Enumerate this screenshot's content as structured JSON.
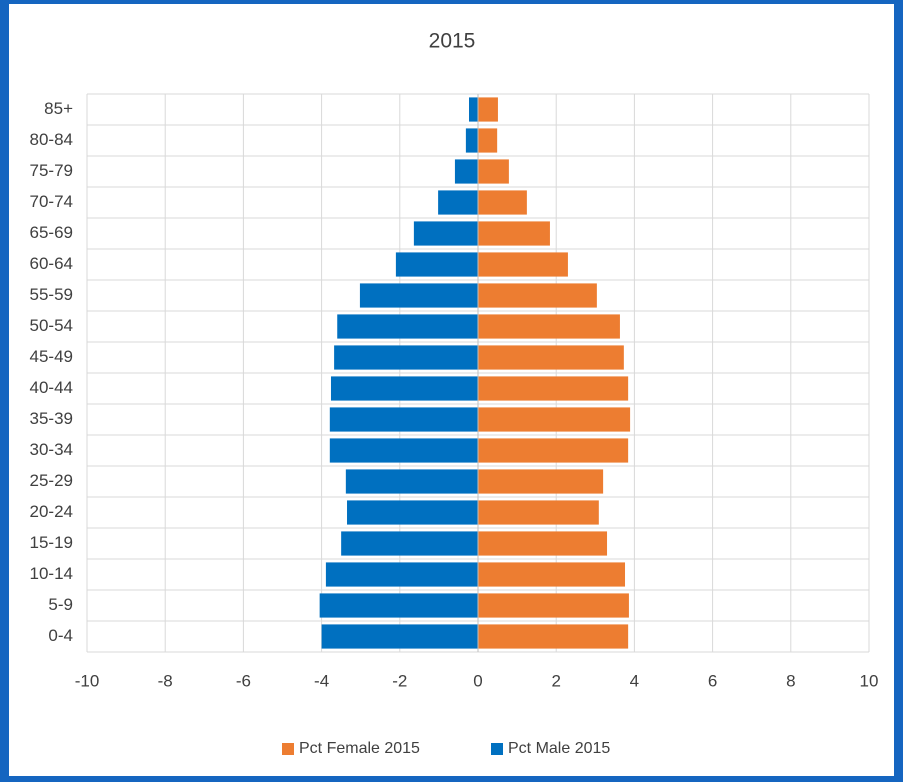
{
  "chart_data": {
    "type": "bar",
    "orientation": "horizontal",
    "title": "2015",
    "categories": [
      "0-4",
      "5-9",
      "10-14",
      "15-19",
      "20-24",
      "25-29",
      "30-34",
      "35-39",
      "40-44",
      "45-49",
      "50-54",
      "55-59",
      "60-64",
      "65-69",
      "70-74",
      "75-79",
      "80-84",
      "85+"
    ],
    "series": [
      {
        "name": "Pct Female 2015",
        "color": "#ed7d31",
        "values": [
          3.84,
          3.86,
          3.76,
          3.3,
          3.09,
          3.2,
          3.84,
          3.89,
          3.84,
          3.73,
          3.63,
          3.04,
          2.3,
          1.84,
          1.25,
          0.79,
          0.49,
          0.51
        ]
      },
      {
        "name": "Pct Male 2015",
        "color": "#0070c0",
        "values": [
          -4.0,
          -4.05,
          -3.89,
          -3.5,
          -3.35,
          -3.38,
          -3.79,
          -3.79,
          -3.76,
          -3.68,
          -3.6,
          -3.02,
          -2.1,
          -1.64,
          -1.02,
          -0.59,
          -0.31,
          -0.23
        ]
      }
    ],
    "xlim": [
      -10,
      10
    ],
    "xticks": [
      -10,
      -8,
      -6,
      -4,
      -2,
      0,
      2,
      4,
      6,
      8,
      10
    ],
    "grid": true,
    "legend": "bottom"
  }
}
